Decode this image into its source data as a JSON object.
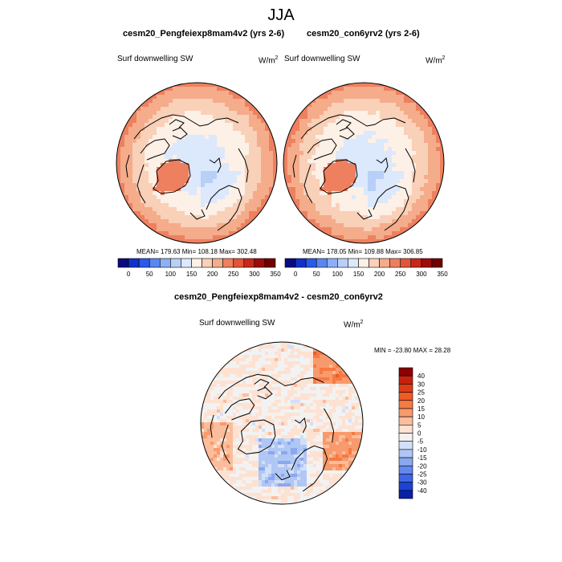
{
  "title": "JJA",
  "panels": [
    {
      "title": "cesm20_Pengfeiexp8mam4v2 (yrs 2-6)",
      "variable": "Surf downwelling SW",
      "units": "W/m",
      "units_exp": "2",
      "stats": "MEAN= 179.63  Min= 108.18  Max= 302.48"
    },
    {
      "title": "cesm20_con6yrv2 (yrs 2-6)",
      "variable": "Surf downwelling SW",
      "units": "W/m",
      "units_exp": "2",
      "stats": "MEAN= 178.05  Min= 109.88  Max= 306.85"
    },
    {
      "title": "cesm20_Pengfeiexp8mam4v2 - cesm20_con6yrv2",
      "variable": "Surf downwelling SW",
      "units": "W/m",
      "units_exp": "2",
      "stats": "MIN = -23.80  MAX =  28.28"
    }
  ],
  "chart_data": [
    {
      "type": "heatmap",
      "projection": "north-polar-stereographic",
      "title": "cesm20_Pengfeiexp8mam4v2 (yrs 2-6)",
      "variable": "Surf downwelling SW",
      "units": "W/m^2",
      "mean": 179.63,
      "min": 108.18,
      "max": 302.48,
      "colorbar_ticks": [
        "0",
        "50",
        "100",
        "150",
        "200",
        "250",
        "300",
        "350"
      ],
      "colorbar_colors": [
        "#0a0a80",
        "#1030c8",
        "#2a5ae8",
        "#5a86f0",
        "#8cb0f5",
        "#b8d0f8",
        "#dce8fb",
        "#fdf0e6",
        "#f9d0b8",
        "#f5ac8a",
        "#ee8060",
        "#e2553a",
        "#c8281c",
        "#9c0c0c",
        "#700000"
      ]
    },
    {
      "type": "heatmap",
      "projection": "north-polar-stereographic",
      "title": "cesm20_con6yrv2 (yrs 2-6)",
      "variable": "Surf downwelling SW",
      "units": "W/m^2",
      "mean": 178.05,
      "min": 109.88,
      "max": 306.85,
      "colorbar_ticks": [
        "0",
        "50",
        "100",
        "150",
        "200",
        "250",
        "300",
        "350"
      ],
      "colorbar_colors": [
        "#0a0a80",
        "#1030c8",
        "#2a5ae8",
        "#5a86f0",
        "#8cb0f5",
        "#b8d0f8",
        "#dce8fb",
        "#fdf0e6",
        "#f9d0b8",
        "#f5ac8a",
        "#ee8060",
        "#e2553a",
        "#c8281c",
        "#9c0c0c",
        "#700000"
      ]
    },
    {
      "type": "heatmap",
      "projection": "north-polar-stereographic",
      "title": "cesm20_Pengfeiexp8mam4v2 - cesm20_con6yrv2",
      "variable": "Surf downwelling SW",
      "units": "W/m^2",
      "min": -23.8,
      "max": 28.28,
      "colorbar_ticks": [
        "40",
        "30",
        "25",
        "20",
        "15",
        "10",
        "5",
        "0",
        "-5",
        "-10",
        "-15",
        "-20",
        "-25",
        "-30",
        "-40"
      ],
      "colorbar_colors": [
        "#8b0000",
        "#c8200e",
        "#e03c14",
        "#f05a24",
        "#f57a44",
        "#f89a6c",
        "#fbbd9c",
        "#fde2d2",
        "#f2f2f2",
        "#d2e0f7",
        "#b0c6f4",
        "#8aa8f0",
        "#6488ec",
        "#3e66e6",
        "#1c44d4",
        "#0a20a8"
      ]
    }
  ]
}
